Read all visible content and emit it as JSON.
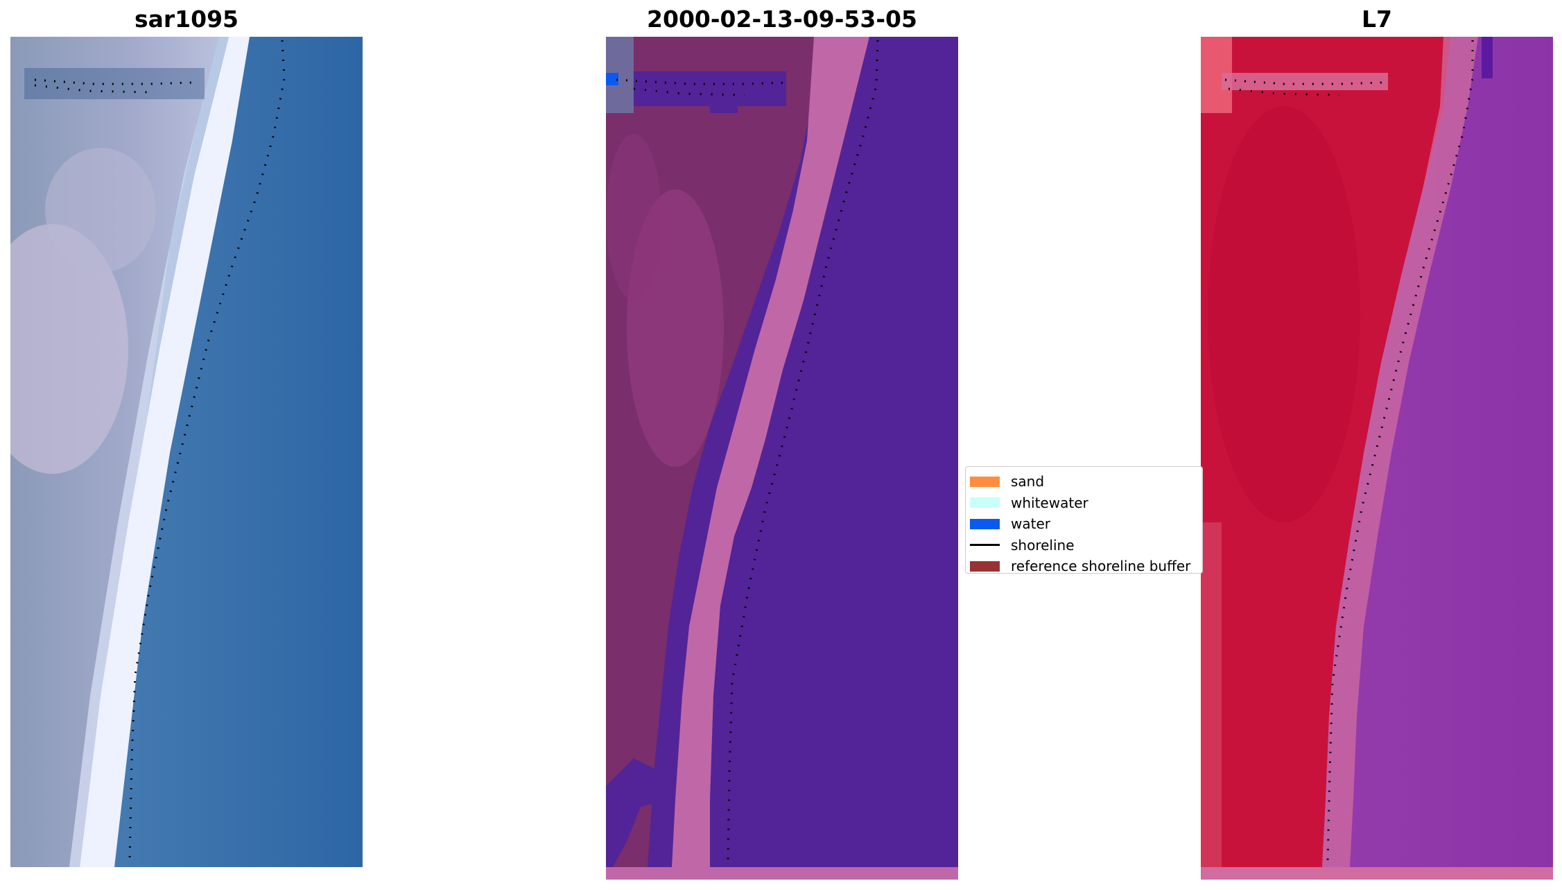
{
  "panels": [
    {
      "title": "sar1095"
    },
    {
      "title": "2000-02-13-09-53-05"
    },
    {
      "title": "L7"
    }
  ],
  "legend": {
    "items": [
      {
        "label": "sand",
        "color": "#ff8c3c",
        "kind": "patch"
      },
      {
        "label": "whitewater",
        "color": "#c8fff8",
        "kind": "patch"
      },
      {
        "label": "water",
        "color": "#0a5af0",
        "kind": "patch"
      },
      {
        "label": "shoreline",
        "color": "#000000",
        "kind": "line"
      },
      {
        "label": "reference shoreline buffer",
        "color": "#993333",
        "kind": "patch"
      }
    ]
  },
  "colors": {
    "panel1_water": "#2f6aa6",
    "panel1_land": "#8a9ab5",
    "panel1_beach": "#f0f4ff",
    "panel2_water": "#522497",
    "panel2_land": "#7a2e6c",
    "panel2_buffer": "#c067a8",
    "panel3_land": "#c8123c",
    "panel3_water": "#8a35a8",
    "panel3_buffer": "#d06ca0",
    "shoreline_dots": "#000000"
  }
}
